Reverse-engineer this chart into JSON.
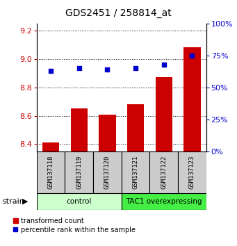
{
  "title": "GDS2451 / 258814_at",
  "samples": [
    "GSM137118",
    "GSM137119",
    "GSM137120",
    "GSM137121",
    "GSM137122",
    "GSM137123"
  ],
  "bar_values": [
    8.41,
    8.65,
    8.61,
    8.68,
    8.87,
    9.08
  ],
  "scatter_values": [
    63,
    65,
    64,
    65,
    68,
    75
  ],
  "ylim_left": [
    8.35,
    9.25
  ],
  "ylim_right": [
    0,
    100
  ],
  "yticks_left": [
    8.4,
    8.6,
    8.8,
    9.0,
    9.2
  ],
  "yticks_right": [
    0,
    25,
    50,
    75,
    100
  ],
  "bar_color": "#cc0000",
  "scatter_color": "#0000cc",
  "bar_bottom": 8.35,
  "groups": [
    {
      "label": "control",
      "indices": [
        0,
        1,
        2
      ],
      "color": "#ccffcc"
    },
    {
      "label": "TAC1 overexpressing",
      "indices": [
        3,
        4,
        5
      ],
      "color": "#44ee44"
    }
  ],
  "strain_label": "strain",
  "legend_bar_label": "transformed count",
  "legend_scatter_label": "percentile rank within the sample",
  "title_fontsize": 10,
  "axis_label_color_left": "#cc0000",
  "axis_label_color_right": "#0000cc",
  "sample_box_color": "#cccccc",
  "bar_width": 0.6
}
